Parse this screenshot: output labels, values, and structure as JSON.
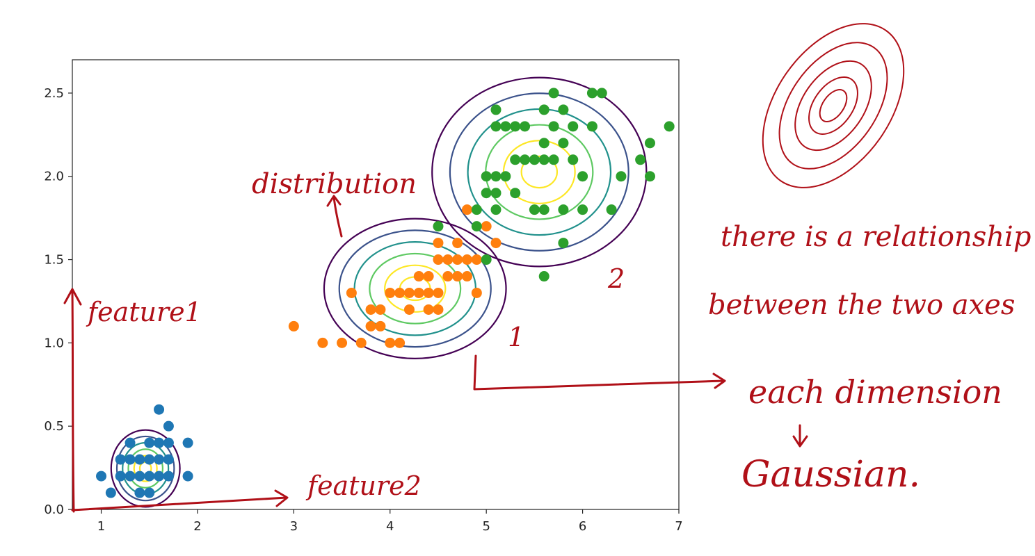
{
  "chart_data": {
    "type": "scatter",
    "title": "",
    "xlabel": "",
    "ylabel": "",
    "xlim": [
      0.7,
      7.0
    ],
    "ylim": [
      0.0,
      2.7
    ],
    "x_ticks": [
      1,
      2,
      3,
      4,
      5,
      6,
      7
    ],
    "y_ticks": [
      0.0,
      0.5,
      1.0,
      1.5,
      2.0,
      2.5
    ],
    "y_tick_labels": [
      "0.0",
      "0.5",
      "1.0",
      "1.5",
      "2.0",
      "2.5"
    ],
    "grid": false,
    "legend": false,
    "series": [
      {
        "color": "#1f77b4",
        "points": [
          [
            1.0,
            0.2
          ],
          [
            1.1,
            0.1
          ],
          [
            1.2,
            0.2
          ],
          [
            1.3,
            0.2
          ],
          [
            1.3,
            0.4
          ],
          [
            1.4,
            0.2
          ],
          [
            1.4,
            0.3
          ],
          [
            1.4,
            0.1
          ],
          [
            1.5,
            0.2
          ],
          [
            1.5,
            0.4
          ],
          [
            1.5,
            0.1
          ],
          [
            1.5,
            0.3
          ],
          [
            1.6,
            0.6
          ],
          [
            1.6,
            0.2
          ],
          [
            1.6,
            0.4
          ],
          [
            1.7,
            0.5
          ],
          [
            1.7,
            0.3
          ],
          [
            1.7,
            0.4
          ],
          [
            1.7,
            0.2
          ],
          [
            1.9,
            0.2
          ],
          [
            1.9,
            0.4
          ],
          [
            1.2,
            0.3
          ],
          [
            1.6,
            0.3
          ],
          [
            1.3,
            0.3
          ]
        ]
      },
      {
        "color": "#ff7f0e",
        "points": [
          [
            3.0,
            1.1
          ],
          [
            3.3,
            1.0
          ],
          [
            3.5,
            1.0
          ],
          [
            3.7,
            1.0
          ],
          [
            3.8,
            1.1
          ],
          [
            3.9,
            1.1
          ],
          [
            3.9,
            1.2
          ],
          [
            4.0,
            1.3
          ],
          [
            4.0,
            1.0
          ],
          [
            4.1,
            1.0
          ],
          [
            4.1,
            1.3
          ],
          [
            4.2,
            1.3
          ],
          [
            4.2,
            1.2
          ],
          [
            4.3,
            1.3
          ],
          [
            4.3,
            1.4
          ],
          [
            4.4,
            1.3
          ],
          [
            4.4,
            1.4
          ],
          [
            4.5,
            1.3
          ],
          [
            4.5,
            1.5
          ],
          [
            4.5,
            1.6
          ],
          [
            4.6,
            1.5
          ],
          [
            4.7,
            1.6
          ],
          [
            4.7,
            1.4
          ],
          [
            4.7,
            1.5
          ],
          [
            4.8,
            1.4
          ],
          [
            4.8,
            1.8
          ],
          [
            4.9,
            1.5
          ],
          [
            5.0,
            1.7
          ],
          [
            5.1,
            1.6
          ],
          [
            4.4,
            1.2
          ],
          [
            3.6,
            1.3
          ],
          [
            3.8,
            1.2
          ],
          [
            4.6,
            1.4
          ],
          [
            4.9,
            1.3
          ],
          [
            4.5,
            1.2
          ],
          [
            4.8,
            1.5
          ]
        ]
      },
      {
        "color": "#2ca02c",
        "points": [
          [
            4.5,
            1.7
          ],
          [
            4.9,
            1.8
          ],
          [
            5.0,
            1.9
          ],
          [
            5.0,
            1.5
          ],
          [
            5.1,
            2.4
          ],
          [
            5.1,
            2.3
          ],
          [
            5.1,
            2.0
          ],
          [
            5.1,
            1.9
          ],
          [
            5.1,
            1.8
          ],
          [
            5.2,
            2.3
          ],
          [
            5.2,
            2.0
          ],
          [
            5.3,
            2.3
          ],
          [
            5.3,
            1.9
          ],
          [
            5.4,
            2.3
          ],
          [
            5.4,
            2.1
          ],
          [
            5.5,
            2.1
          ],
          [
            5.5,
            1.8
          ],
          [
            5.6,
            2.4
          ],
          [
            5.6,
            2.2
          ],
          [
            5.6,
            2.1
          ],
          [
            5.6,
            1.8
          ],
          [
            5.6,
            1.4
          ],
          [
            5.7,
            2.5
          ],
          [
            5.7,
            2.3
          ],
          [
            5.7,
            2.1
          ],
          [
            5.8,
            2.2
          ],
          [
            5.8,
            1.8
          ],
          [
            5.8,
            1.6
          ],
          [
            5.9,
            2.3
          ],
          [
            5.9,
            2.1
          ],
          [
            6.0,
            2.0
          ],
          [
            6.0,
            1.8
          ],
          [
            6.1,
            2.5
          ],
          [
            6.1,
            2.3
          ],
          [
            6.3,
            1.8
          ],
          [
            6.4,
            2.0
          ],
          [
            6.6,
            2.1
          ],
          [
            6.7,
            2.2
          ],
          [
            6.7,
            2.0
          ],
          [
            6.9,
            2.3
          ],
          [
            6.2,
            2.5
          ],
          [
            5.8,
            2.4
          ],
          [
            4.9,
            1.7
          ],
          [
            5.0,
            2.0
          ],
          [
            5.3,
            2.1
          ]
        ]
      }
    ],
    "contours": [
      {
        "center": [
          1.46,
          0.246
        ],
        "spread": [
          0.17,
          0.11
        ]
      },
      {
        "center": [
          4.26,
          1.326
        ],
        "spread": [
          0.45,
          0.2
        ]
      },
      {
        "center": [
          5.55,
          2.026
        ],
        "spread": [
          0.53,
          0.27
        ]
      }
    ],
    "contour_level_colors": [
      "#440154",
      "#3b528b",
      "#21918c",
      "#5ec962",
      "#fde725"
    ],
    "contour_level_scales": [
      2.1,
      1.75,
      1.4,
      1.05,
      0.7,
      0.35
    ]
  },
  "annotations": {
    "distribution": "distribution",
    "feature1": "feature1",
    "feature2": "feature2",
    "label_one": "1",
    "label_two": "2",
    "relationship_line1": "there is a relationship",
    "relationship_line2": "between the two axes",
    "each_dimension": "each dimension",
    "gaussian": "Gaussian."
  }
}
